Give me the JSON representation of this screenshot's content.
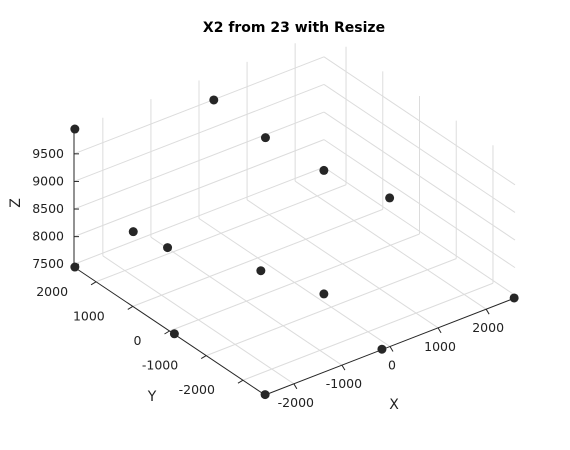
{
  "chart_data": {
    "type": "scatter",
    "title": "X2 from 23 with Resize",
    "xlabel": "X",
    "ylabel": "Y",
    "zlabel": "Z",
    "xlim": [
      -2600,
      2600
    ],
    "ylim": [
      -2600,
      2600
    ],
    "zlim": [
      7450,
      9950
    ],
    "xticks": [
      -2000,
      -1000,
      0,
      1000,
      2000
    ],
    "yticks": [
      -2000,
      -1000,
      0,
      1000,
      2000
    ],
    "zticks": [
      7500,
      8000,
      8500,
      9000,
      9500
    ],
    "xtick_labels": [
      "-2000",
      "-1000",
      "0",
      "1000",
      "2000"
    ],
    "ytick_labels": [
      "-2000",
      "-1000",
      "0",
      "1000",
      "2000"
    ],
    "ztick_labels": [
      "7500",
      "8000",
      "8500",
      "9000",
      "9500"
    ],
    "grid": true,
    "marker_color": "#262626",
    "points": [
      {
        "x": -2590,
        "y": 2590,
        "z": 9950
      },
      {
        "x": -2590,
        "y": 2590,
        "z": 7450
      },
      {
        "x": -2590,
        "y": -120,
        "z": 7450
      },
      {
        "x": -2590,
        "y": -2590,
        "z": 7450
      },
      {
        "x": -160,
        "y": -2590,
        "z": 7450
      },
      {
        "x": 2590,
        "y": -2590,
        "z": 7450
      },
      {
        "x": 2590,
        "y": 2590,
        "z": 7450
      },
      {
        "x": -2590,
        "y": 1000,
        "z": 8800
      },
      {
        "x": -1800,
        "y": 1100,
        "z": 8200
      },
      {
        "x": -700,
        "y": 0,
        "z": 7900
      },
      {
        "x": 0,
        "y": -800,
        "z": 7600
      },
      {
        "x": 300,
        "y": 2590,
        "z": 9500
      },
      {
        "x": 1000,
        "y": 2100,
        "z": 8800
      },
      {
        "x": 2590,
        "y": 800,
        "z": 7750
      }
    ]
  }
}
